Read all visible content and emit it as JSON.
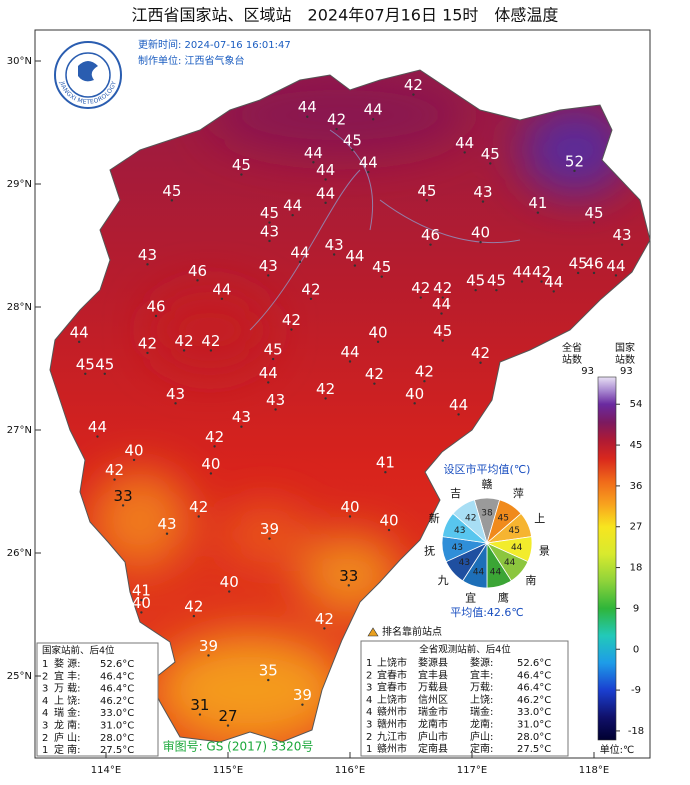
{
  "title": "江西省国家站、区域站　2024年07月16日 15时　体感温度",
  "update_time": "更新时间: 2024-07-16 16:01:47",
  "producer": "制作单位: 江西省气象台",
  "logo_text": "JIANGXI METEOROLOGY",
  "lat_ticks": [
    {
      "value": 30,
      "label": "30°N"
    },
    {
      "value": 29,
      "label": "29°N"
    },
    {
      "value": 28,
      "label": "28°N"
    },
    {
      "value": 27,
      "label": "27°N"
    },
    {
      "value": 26,
      "label": "26°N"
    },
    {
      "value": 25,
      "label": "25°N"
    }
  ],
  "lon_ticks": [
    {
      "value": 114,
      "label": "114°E"
    },
    {
      "value": 115,
      "label": "115°E"
    },
    {
      "value": 116,
      "label": "116°E"
    },
    {
      "value": 117,
      "label": "117°E"
    },
    {
      "value": 118,
      "label": "118°E"
    }
  ],
  "stations": [
    {
      "v": 44,
      "lon": 115.65,
      "lat": 29.62
    },
    {
      "v": 42,
      "lon": 116.52,
      "lat": 29.8
    },
    {
      "v": 42,
      "lon": 115.89,
      "lat": 29.52
    },
    {
      "v": 44,
      "lon": 116.19,
      "lat": 29.6
    },
    {
      "v": 45,
      "lon": 116.02,
      "lat": 29.35
    },
    {
      "v": 44,
      "lon": 116.94,
      "lat": 29.33
    },
    {
      "v": 45,
      "lon": 117.15,
      "lat": 29.24
    },
    {
      "v": 44,
      "lon": 115.7,
      "lat": 29.25
    },
    {
      "v": 44,
      "lon": 116.15,
      "lat": 29.17
    },
    {
      "v": 52,
      "lon": 117.84,
      "lat": 29.18
    },
    {
      "v": 45,
      "lon": 115.11,
      "lat": 29.15
    },
    {
      "v": 44,
      "lon": 115.8,
      "lat": 29.11
    },
    {
      "v": 45,
      "lon": 114.54,
      "lat": 28.94
    },
    {
      "v": 45,
      "lon": 116.63,
      "lat": 28.94
    },
    {
      "v": 44,
      "lon": 115.8,
      "lat": 28.92
    },
    {
      "v": 43,
      "lon": 117.09,
      "lat": 28.93
    },
    {
      "v": 41,
      "lon": 117.54,
      "lat": 28.84
    },
    {
      "v": 44,
      "lon": 115.53,
      "lat": 28.82
    },
    {
      "v": 45,
      "lon": 115.34,
      "lat": 28.76
    },
    {
      "v": 45,
      "lon": 118.0,
      "lat": 28.76
    },
    {
      "v": 43,
      "lon": 115.34,
      "lat": 28.61
    },
    {
      "v": 40,
      "lon": 117.07,
      "lat": 28.6
    },
    {
      "v": 46,
      "lon": 116.66,
      "lat": 28.58
    },
    {
      "v": 43,
      "lon": 118.23,
      "lat": 28.58
    },
    {
      "v": 43,
      "lon": 114.34,
      "lat": 28.42
    },
    {
      "v": 43,
      "lon": 115.87,
      "lat": 28.5
    },
    {
      "v": 44,
      "lon": 115.59,
      "lat": 28.44
    },
    {
      "v": 44,
      "lon": 116.04,
      "lat": 28.41
    },
    {
      "v": 45,
      "lon": 116.26,
      "lat": 28.32
    },
    {
      "v": 46,
      "lon": 114.75,
      "lat": 28.29
    },
    {
      "v": 43,
      "lon": 115.33,
      "lat": 28.33
    },
    {
      "v": 44,
      "lon": 117.41,
      "lat": 28.28
    },
    {
      "v": 42,
      "lon": 117.57,
      "lat": 28.28
    },
    {
      "v": 45,
      "lon": 117.87,
      "lat": 28.35
    },
    {
      "v": 46,
      "lon": 118.0,
      "lat": 28.35
    },
    {
      "v": 44,
      "lon": 118.18,
      "lat": 28.33
    },
    {
      "v": 45,
      "lon": 117.03,
      "lat": 28.21
    },
    {
      "v": 45,
      "lon": 117.2,
      "lat": 28.21
    },
    {
      "v": 44,
      "lon": 117.67,
      "lat": 28.2
    },
    {
      "v": 42,
      "lon": 116.58,
      "lat": 28.15
    },
    {
      "v": 42,
      "lon": 116.76,
      "lat": 28.15
    },
    {
      "v": 44,
      "lon": 114.95,
      "lat": 28.14
    },
    {
      "v": 42,
      "lon": 115.68,
      "lat": 28.14
    },
    {
      "v": 46,
      "lon": 114.41,
      "lat": 28.0
    },
    {
      "v": 44,
      "lon": 116.75,
      "lat": 28.02
    },
    {
      "v": 42,
      "lon": 115.52,
      "lat": 27.89
    },
    {
      "v": 44,
      "lon": 113.78,
      "lat": 27.79
    },
    {
      "v": 42,
      "lon": 114.34,
      "lat": 27.7
    },
    {
      "v": 42,
      "lon": 114.64,
      "lat": 27.72
    },
    {
      "v": 42,
      "lon": 114.86,
      "lat": 27.72
    },
    {
      "v": 40,
      "lon": 116.23,
      "lat": 27.79
    },
    {
      "v": 45,
      "lon": 116.76,
      "lat": 27.8
    },
    {
      "v": 45,
      "lon": 115.37,
      "lat": 27.65
    },
    {
      "v": 44,
      "lon": 116.0,
      "lat": 27.63
    },
    {
      "v": 42,
      "lon": 117.07,
      "lat": 27.62
    },
    {
      "v": 45,
      "lon": 113.83,
      "lat": 27.53
    },
    {
      "v": 45,
      "lon": 113.99,
      "lat": 27.53
    },
    {
      "v": 44,
      "lon": 115.33,
      "lat": 27.46
    },
    {
      "v": 42,
      "lon": 116.2,
      "lat": 27.45
    },
    {
      "v": 42,
      "lon": 116.61,
      "lat": 27.47
    },
    {
      "v": 43,
      "lon": 114.57,
      "lat": 27.29
    },
    {
      "v": 42,
      "lon": 115.8,
      "lat": 27.33
    },
    {
      "v": 43,
      "lon": 115.39,
      "lat": 27.24
    },
    {
      "v": 40,
      "lon": 116.53,
      "lat": 27.29
    },
    {
      "v": 44,
      "lon": 116.89,
      "lat": 27.2
    },
    {
      "v": 43,
      "lon": 115.11,
      "lat": 27.1
    },
    {
      "v": 44,
      "lon": 113.93,
      "lat": 27.02
    },
    {
      "v": 42,
      "lon": 114.89,
      "lat": 26.94
    },
    {
      "v": 40,
      "lon": 114.23,
      "lat": 26.83
    },
    {
      "v": 40,
      "lon": 114.86,
      "lat": 26.72
    },
    {
      "v": 41,
      "lon": 116.29,
      "lat": 26.73
    },
    {
      "v": 42,
      "lon": 114.07,
      "lat": 26.67
    },
    {
      "v": 33,
      "lon": 114.14,
      "lat": 26.46
    },
    {
      "v": 42,
      "lon": 114.76,
      "lat": 26.37
    },
    {
      "v": 40,
      "lon": 116.0,
      "lat": 26.37
    },
    {
      "v": 40,
      "lon": 116.32,
      "lat": 26.26
    },
    {
      "v": 43,
      "lon": 114.5,
      "lat": 26.23
    },
    {
      "v": 39,
      "lon": 115.34,
      "lat": 26.19
    },
    {
      "v": 33,
      "lon": 115.99,
      "lat": 25.81
    },
    {
      "v": 40,
      "lon": 115.01,
      "lat": 25.76
    },
    {
      "v": 41,
      "lon": 114.29,
      "lat": 25.69
    },
    {
      "v": 40,
      "lon": 114.29,
      "lat": 25.59
    },
    {
      "v": 42,
      "lon": 114.72,
      "lat": 25.56
    },
    {
      "v": 42,
      "lon": 115.79,
      "lat": 25.46
    },
    {
      "v": 39,
      "lon": 114.84,
      "lat": 25.24
    },
    {
      "v": 35,
      "lon": 115.33,
      "lat": 25.04
    },
    {
      "v": 39,
      "lon": 115.61,
      "lat": 24.84
    },
    {
      "v": 31,
      "lon": 114.77,
      "lat": 24.76
    },
    {
      "v": 27,
      "lon": 115.0,
      "lat": 24.67
    }
  ],
  "colorbar": {
    "lim": [
      -20,
      60
    ],
    "ticks": [
      54,
      45,
      36,
      27,
      18,
      9,
      0,
      -9,
      -18
    ],
    "stops": [
      {
        "v": -20,
        "c": "#000030"
      },
      {
        "v": -15,
        "c": "#10106a"
      },
      {
        "v": -9,
        "c": "#1a3fd0"
      },
      {
        "v": -3,
        "c": "#1e9ce8"
      },
      {
        "v": 3,
        "c": "#22c9b9"
      },
      {
        "v": 9,
        "c": "#2fb53a"
      },
      {
        "v": 15,
        "c": "#8fd33a"
      },
      {
        "v": 21,
        "c": "#d8ea2e"
      },
      {
        "v": 27,
        "c": "#f7e51f"
      },
      {
        "v": 32,
        "c": "#f8a21e"
      },
      {
        "v": 37,
        "c": "#f06a1a"
      },
      {
        "v": 42,
        "c": "#d9281d"
      },
      {
        "v": 46,
        "c": "#b01a34"
      },
      {
        "v": 50,
        "c": "#7c1a60"
      },
      {
        "v": 54,
        "c": "#6a2aa0"
      },
      {
        "v": 57,
        "c": "#a888d0"
      },
      {
        "v": 60,
        "c": "#e8e0f4"
      }
    ],
    "unit": "单位:℃",
    "count_all": {
      "lines": [
        "全省",
        "站数"
      ],
      "count": 93
    },
    "count_nat": {
      "lines": [
        "国家",
        "站数"
      ],
      "count": 93
    }
  },
  "pie": {
    "title": "设区市平均值(℃)",
    "categories": [
      "赣",
      "萍",
      "上",
      "景",
      "南",
      "鹰",
      "宜",
      "九",
      "抚",
      "新",
      "吉"
    ],
    "values": [
      38,
      45,
      45,
      44,
      44,
      44,
      44,
      43,
      43,
      43,
      42
    ],
    "colors": [
      "#9a9a9a",
      "#f08a1c",
      "#f6b431",
      "#f2ec2c",
      "#8cc63e",
      "#3ba535",
      "#1d6fb8",
      "#1f4fa0",
      "#2f8ed8",
      "#58c6ee",
      "#a8def4"
    ],
    "mean_label": "平均值:42.6℃"
  },
  "rank_legend": "排名靠前站点",
  "nat_table": {
    "title": "国家站前、后4位",
    "rows": [
      [
        "1",
        "婺 源:",
        "52.6°C"
      ],
      [
        "2",
        "宜 丰:",
        "46.4°C"
      ],
      [
        "3",
        "万 载:",
        "46.4°C"
      ],
      [
        "4",
        "上 饶:",
        "46.2°C"
      ],
      [
        "4",
        "瑞 金:",
        "33.0°C"
      ],
      [
        "3",
        "龙 南:",
        "31.0°C"
      ],
      [
        "2",
        "庐 山:",
        "28.0°C"
      ],
      [
        "1",
        "定 南:",
        "27.5°C"
      ]
    ]
  },
  "all_table": {
    "title": "全省观测站前、后4位",
    "rows": [
      [
        "1",
        "上饶市",
        "婺源县",
        "婺源:",
        "52.6°C"
      ],
      [
        "2",
        "宜春市",
        "宜丰县",
        "宜丰:",
        "46.4°C"
      ],
      [
        "3",
        "宜春市",
        "万载县",
        "万载:",
        "46.4°C"
      ],
      [
        "4",
        "上饶市",
        "信州区",
        "上饶:",
        "46.2°C"
      ],
      [
        "4",
        "赣州市",
        "瑞金市",
        "瑞金:",
        "33.0°C"
      ],
      [
        "3",
        "赣州市",
        "龙南市",
        "龙南:",
        "31.0°C"
      ],
      [
        "2",
        "九江市",
        "庐山市",
        "庐山:",
        "28.0°C"
      ],
      [
        "1",
        "赣州市",
        "定南县",
        "定南:",
        "27.5°C"
      ]
    ]
  },
  "approval": "审图号: GS (2017) 3320号"
}
